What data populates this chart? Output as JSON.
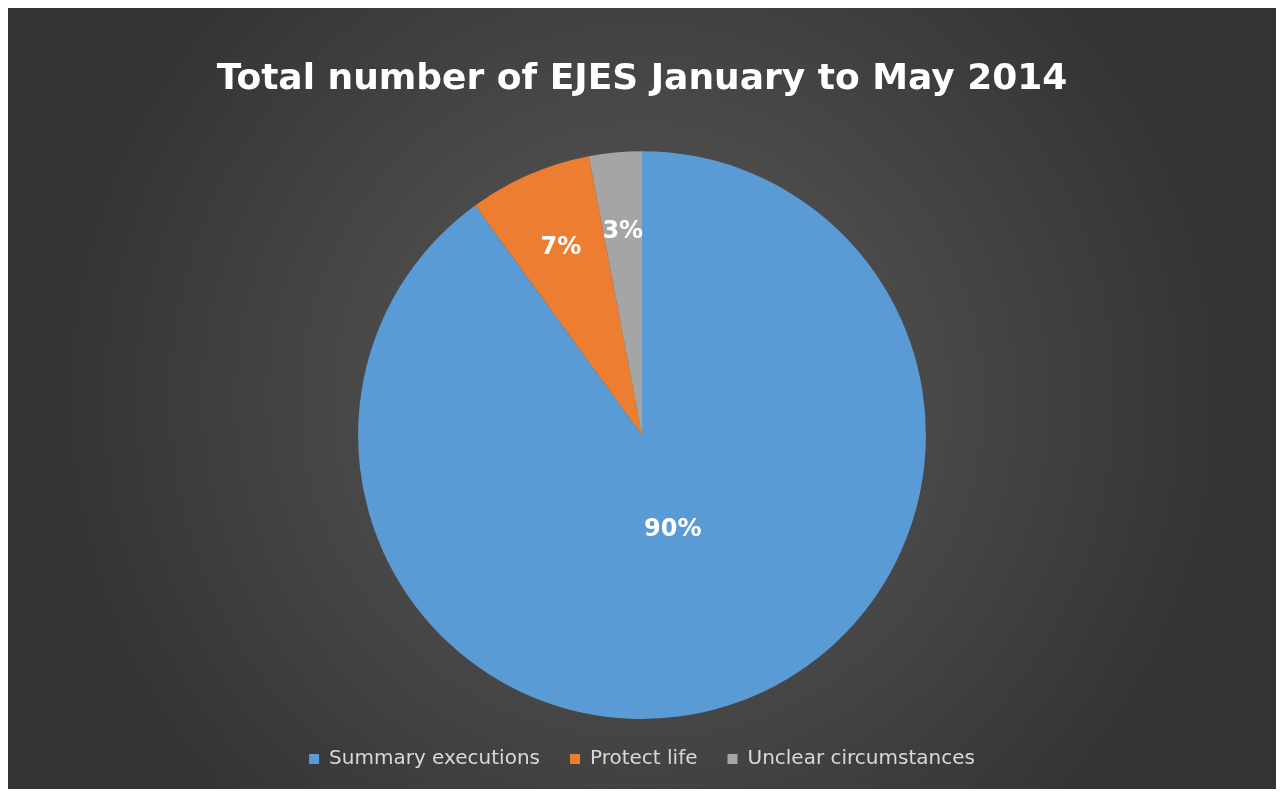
{
  "chart_data": {
    "type": "pie",
    "title": "Total number of EJES January to May 2014",
    "categories": [
      "Summary executions",
      "Protect life",
      "Unclear circumstances"
    ],
    "values": [
      90,
      7,
      3
    ],
    "colors": [
      "#5b9bd5",
      "#ed7d31",
      "#a5a5a5"
    ],
    "value_labels": [
      "90%",
      "7%",
      "3%"
    ],
    "legend": "bottom"
  }
}
